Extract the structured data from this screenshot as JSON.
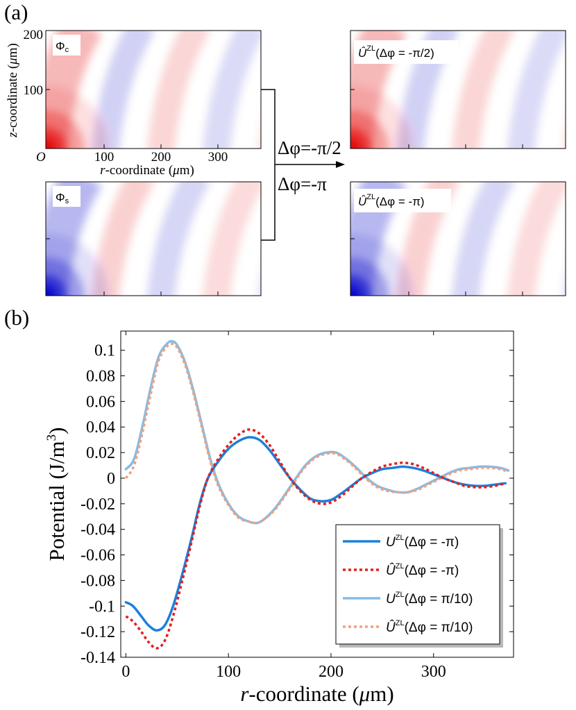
{
  "panel_a": {
    "label": "(a)",
    "heatmaps": [
      {
        "name": "Φ",
        "sub": "c",
        "sign": 1
      },
      {
        "name": "Φ",
        "sub": "s",
        "sign": -1
      },
      {
        "name": "Û",
        "sup": "ZL",
        "arg": "(Δφ = -π/2)",
        "sign": 1
      },
      {
        "name": "Û",
        "sup": "ZL",
        "arg": "(Δφ = -π)",
        "sign": -1
      }
    ],
    "z_axis": {
      "label_pre": "z",
      "label_post": "-coordinate (",
      "label_mu": "μ",
      "label_unit": "m)",
      "ticks": [
        "200",
        "100"
      ]
    },
    "r_axis": {
      "label_pre": "r",
      "label_post": "-coordinate (",
      "label_mu": "μ",
      "label_unit": "m)",
      "ticks": [
        "100",
        "200",
        "300"
      ]
    },
    "origin": "O",
    "arrow_top": "Δφ=-π/2",
    "arrow_bottom": "Δφ=-π"
  },
  "colors": {
    "series1": "#1e7fd9",
    "series2": "#e41e1e",
    "series3": "#86bce6",
    "series4": "#f2a07c",
    "heat_pos": "#e30000",
    "heat_neg": "#0000c8"
  },
  "chart_data": {
    "type": "line",
    "panel_label": "(b)",
    "title": "",
    "xlabel_italic": "r",
    "xlabel_rest": "-coordinate (",
    "xlabel_mu": "μ",
    "xlabel_unit": "m)",
    "ylabel": "Potential (J/m",
    "ylabel_sup": "3",
    "ylabel_close": ")",
    "xlim": [
      -5,
      378
    ],
    "ylim": [
      -0.14,
      0.115
    ],
    "xticks": [
      0,
      100,
      200,
      300
    ],
    "xtick_labels": [
      "0",
      "100",
      "200",
      "300"
    ],
    "yticks": [
      -0.14,
      -0.12,
      -0.1,
      -0.08,
      -0.06,
      -0.04,
      -0.02,
      0,
      0.02,
      0.04,
      0.06,
      0.08,
      0.1
    ],
    "ytick_labels": [
      "-0.14",
      "-0.12",
      "-0.1",
      "-0.08",
      "-0.06",
      "-0.04",
      "-0.02",
      "0",
      "0.02",
      "0.04",
      "0.06",
      "0.08",
      "0.1"
    ],
    "legend_position": "lower-right",
    "series": [
      {
        "name": "U",
        "sup": "ZL",
        "hat": false,
        "arg": "(Δφ = -π)",
        "style": "solid",
        "color_key": "series1",
        "points": [
          [
            0,
            -0.097
          ],
          [
            7,
            -0.1
          ],
          [
            15,
            -0.108
          ],
          [
            22,
            -0.115
          ],
          [
            30,
            -0.119
          ],
          [
            38,
            -0.115
          ],
          [
            46,
            -0.1
          ],
          [
            55,
            -0.075
          ],
          [
            64,
            -0.047
          ],
          [
            72,
            -0.02
          ],
          [
            80,
            0
          ],
          [
            90,
            0.013
          ],
          [
            100,
            0.023
          ],
          [
            110,
            0.029
          ],
          [
            120,
            0.032
          ],
          [
            130,
            0.03
          ],
          [
            140,
            0.022
          ],
          [
            150,
            0.011
          ],
          [
            160,
            0
          ],
          [
            170,
            -0.009
          ],
          [
            180,
            -0.016
          ],
          [
            190,
            -0.018
          ],
          [
            200,
            -0.017
          ],
          [
            210,
            -0.012
          ],
          [
            220,
            -0.006
          ],
          [
            230,
            0
          ],
          [
            240,
            0.004
          ],
          [
            250,
            0.007
          ],
          [
            260,
            0.008
          ],
          [
            270,
            0.009
          ],
          [
            280,
            0.008
          ],
          [
            290,
            0.006
          ],
          [
            300,
            0.003
          ],
          [
            310,
            0
          ],
          [
            320,
            -0.003
          ],
          [
            330,
            -0.005
          ],
          [
            340,
            -0.006
          ],
          [
            350,
            -0.006
          ],
          [
            360,
            -0.005
          ],
          [
            370,
            -0.004
          ]
        ]
      },
      {
        "name": "Û",
        "sup": "ZL",
        "hat": true,
        "arg": "(Δφ = -π)",
        "style": "dotted",
        "color_key": "series2",
        "points": [
          [
            0,
            -0.108
          ],
          [
            7,
            -0.112
          ],
          [
            15,
            -0.12
          ],
          [
            22,
            -0.128
          ],
          [
            30,
            -0.133
          ],
          [
            38,
            -0.127
          ],
          [
            46,
            -0.108
          ],
          [
            55,
            -0.08
          ],
          [
            64,
            -0.05
          ],
          [
            72,
            -0.022
          ],
          [
            80,
            0
          ],
          [
            90,
            0.015
          ],
          [
            100,
            0.026
          ],
          [
            110,
            0.034
          ],
          [
            120,
            0.038
          ],
          [
            130,
            0.035
          ],
          [
            140,
            0.026
          ],
          [
            150,
            0.013
          ],
          [
            160,
            0
          ],
          [
            170,
            -0.01
          ],
          [
            180,
            -0.017
          ],
          [
            190,
            -0.02
          ],
          [
            200,
            -0.019
          ],
          [
            210,
            -0.014
          ],
          [
            220,
            -0.007
          ],
          [
            230,
            0
          ],
          [
            240,
            0.005
          ],
          [
            250,
            0.009
          ],
          [
            260,
            0.011
          ],
          [
            270,
            0.012
          ],
          [
            280,
            0.011
          ],
          [
            290,
            0.008
          ],
          [
            300,
            0.004
          ],
          [
            310,
            0
          ],
          [
            320,
            -0.003
          ],
          [
            330,
            -0.006
          ],
          [
            340,
            -0.007
          ],
          [
            350,
            -0.007
          ],
          [
            360,
            -0.006
          ],
          [
            370,
            -0.004
          ]
        ]
      },
      {
        "name": "U",
        "sup": "ZL",
        "hat": false,
        "arg": "(Δφ = π/10)",
        "style": "solid",
        "color_key": "series3",
        "points": [
          [
            0,
            0.007
          ],
          [
            8,
            0.015
          ],
          [
            16,
            0.04
          ],
          [
            24,
            0.07
          ],
          [
            32,
            0.095
          ],
          [
            40,
            0.105
          ],
          [
            45,
            0.107
          ],
          [
            50,
            0.104
          ],
          [
            58,
            0.09
          ],
          [
            66,
            0.068
          ],
          [
            74,
            0.042
          ],
          [
            82,
            0.016
          ],
          [
            90,
            -0.004
          ],
          [
            100,
            -0.02
          ],
          [
            110,
            -0.03
          ],
          [
            120,
            -0.034
          ],
          [
            128,
            -0.035
          ],
          [
            135,
            -0.032
          ],
          [
            145,
            -0.024
          ],
          [
            155,
            -0.013
          ],
          [
            165,
            -0.001
          ],
          [
            175,
            0.01
          ],
          [
            185,
            0.017
          ],
          [
            195,
            0.02
          ],
          [
            205,
            0.02
          ],
          [
            215,
            0.015
          ],
          [
            225,
            0.008
          ],
          [
            235,
            0
          ],
          [
            245,
            -0.006
          ],
          [
            255,
            -0.009
          ],
          [
            265,
            -0.011
          ],
          [
            275,
            -0.011
          ],
          [
            285,
            -0.008
          ],
          [
            295,
            -0.004
          ],
          [
            305,
            0
          ],
          [
            315,
            0.004
          ],
          [
            325,
            0.007
          ],
          [
            335,
            0.008
          ],
          [
            345,
            0.009
          ],
          [
            355,
            0.009
          ],
          [
            365,
            0.008
          ],
          [
            373,
            0.006
          ]
        ]
      },
      {
        "name": "Û",
        "sup": "ZL",
        "hat": true,
        "arg": "(Δφ = π/10)",
        "style": "dotted",
        "color_key": "series4",
        "points": [
          [
            0,
            0
          ],
          [
            8,
            0.01
          ],
          [
            16,
            0.035
          ],
          [
            24,
            0.065
          ],
          [
            32,
            0.092
          ],
          [
            40,
            0.103
          ],
          [
            45,
            0.105
          ],
          [
            50,
            0.102
          ],
          [
            58,
            0.088
          ],
          [
            66,
            0.066
          ],
          [
            74,
            0.04
          ],
          [
            82,
            0.014
          ],
          [
            90,
            -0.006
          ],
          [
            100,
            -0.021
          ],
          [
            110,
            -0.031
          ],
          [
            120,
            -0.034
          ],
          [
            128,
            -0.035
          ],
          [
            135,
            -0.032
          ],
          [
            145,
            -0.025
          ],
          [
            155,
            -0.014
          ],
          [
            165,
            -0.002
          ],
          [
            175,
            0.009
          ],
          [
            185,
            0.016
          ],
          [
            195,
            0.019
          ],
          [
            205,
            0.019
          ],
          [
            215,
            0.014
          ],
          [
            225,
            0.007
          ],
          [
            235,
            -0.001
          ],
          [
            245,
            -0.007
          ],
          [
            255,
            -0.01
          ],
          [
            265,
            -0.011
          ],
          [
            275,
            -0.011
          ],
          [
            285,
            -0.009
          ],
          [
            295,
            -0.005
          ],
          [
            305,
            -0.001
          ],
          [
            315,
            0.003
          ],
          [
            325,
            0.006
          ],
          [
            335,
            0.007
          ],
          [
            345,
            0.008
          ],
          [
            355,
            0.008
          ],
          [
            365,
            0.007
          ],
          [
            373,
            0.005
          ]
        ]
      }
    ]
  }
}
